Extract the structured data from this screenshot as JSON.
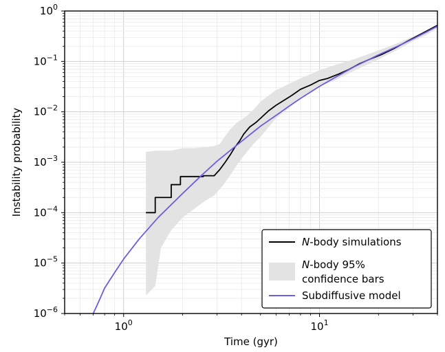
{
  "chart_data": {
    "type": "line",
    "xlabel": "Time (gyr)",
    "ylabel": "Instability probability",
    "x_scale": "log",
    "y_scale": "log",
    "xlim": [
      0.5,
      40
    ],
    "ylim": [
      1e-06,
      1
    ],
    "grid": true,
    "legend_position": "lower-right",
    "x_ticks": [
      {
        "value": 1,
        "base": "10",
        "exp": "0"
      },
      {
        "value": 10,
        "base": "10",
        "exp": "1"
      }
    ],
    "y_ticks": [
      {
        "value": 1,
        "base": "10",
        "exp": "0"
      },
      {
        "value": 0.1,
        "base": "10",
        "exp": "−1"
      },
      {
        "value": 0.01,
        "base": "10",
        "exp": "−2"
      },
      {
        "value": 0.001,
        "base": "10",
        "exp": "−3"
      },
      {
        "value": 0.0001,
        "base": "10",
        "exp": "−4"
      },
      {
        "value": 1e-05,
        "base": "10",
        "exp": "−5"
      },
      {
        "value": 1e-06,
        "base": "10",
        "exp": "−6"
      }
    ],
    "legend": [
      {
        "key": "nbody",
        "italic": "N",
        "text": "-body simulations",
        "style": "line",
        "color": "#000000"
      },
      {
        "key": "ci",
        "italic": "N",
        "text": "-body 95%",
        "text2": "confidence bars",
        "style": "band",
        "color": "#e3e3e3"
      },
      {
        "key": "model",
        "italic": "",
        "text": "Subdiffusive model",
        "style": "line",
        "color": "#6b5de0"
      }
    ],
    "series": [
      {
        "name": "N-body simulations",
        "kind": "step",
        "color": "#000000",
        "points": [
          [
            1.3,
            0.0001
          ],
          [
            1.45,
            0.0001
          ],
          [
            1.45,
            0.0002
          ],
          [
            1.75,
            0.0002
          ],
          [
            1.75,
            0.00036
          ],
          [
            1.95,
            0.00036
          ],
          [
            1.95,
            0.00052
          ],
          [
            2.55,
            0.00052
          ],
          [
            2.55,
            0.00054
          ],
          [
            2.9,
            0.00054
          ],
          [
            3.1,
            0.00072
          ],
          [
            3.3,
            0.001
          ],
          [
            3.5,
            0.0014
          ],
          [
            3.7,
            0.002
          ],
          [
            3.9,
            0.0026
          ],
          [
            4.1,
            0.0036
          ],
          [
            4.4,
            0.005
          ],
          [
            4.75,
            0.0062
          ],
          [
            5.1,
            0.008
          ],
          [
            5.5,
            0.0105
          ],
          [
            6.0,
            0.0135
          ],
          [
            6.6,
            0.017
          ],
          [
            7.2,
            0.021
          ],
          [
            8.0,
            0.028
          ],
          [
            9.0,
            0.034
          ],
          [
            10.0,
            0.042
          ],
          [
            11.0,
            0.046
          ],
          [
            12.5,
            0.056
          ],
          [
            14.0,
            0.068
          ],
          [
            16.0,
            0.09
          ],
          [
            18.0,
            0.11
          ],
          [
            21.0,
            0.14
          ],
          [
            24.0,
            0.18
          ],
          [
            28.0,
            0.25
          ],
          [
            33.0,
            0.35
          ],
          [
            40.0,
            0.52
          ]
        ]
      },
      {
        "name": "Subdiffusive model",
        "kind": "line",
        "color": "#6b5de0",
        "points": [
          [
            0.7,
            1e-06
          ],
          [
            0.75,
            1.8e-06
          ],
          [
            0.8,
            3.2e-06
          ],
          [
            0.9,
            6.5e-06
          ],
          [
            1.0,
            1.2e-05
          ],
          [
            1.2,
            3e-05
          ],
          [
            1.5,
            8e-05
          ],
          [
            2.0,
            0.00024
          ],
          [
            2.5,
            0.00055
          ],
          [
            3.0,
            0.00105
          ],
          [
            4.0,
            0.0026
          ],
          [
            5.0,
            0.0052
          ],
          [
            6.0,
            0.0085
          ],
          [
            7.0,
            0.013
          ],
          [
            8.0,
            0.0185
          ],
          [
            10.0,
            0.032
          ],
          [
            12.0,
            0.048
          ],
          [
            15.0,
            0.078
          ],
          [
            20.0,
            0.135
          ],
          [
            25.0,
            0.2
          ],
          [
            30.0,
            0.28
          ],
          [
            35.0,
            0.38
          ],
          [
            40.0,
            0.5
          ]
        ]
      },
      {
        "name": "N-body 95% confidence bars",
        "kind": "band",
        "color": "#e3e3e3",
        "lower": [
          [
            1.3,
            2.3e-06
          ],
          [
            1.45,
            3.5e-06
          ],
          [
            1.55,
            2e-05
          ],
          [
            1.75,
            4.5e-05
          ],
          [
            2.0,
            8e-05
          ],
          [
            2.3,
            0.00012
          ],
          [
            2.6,
            0.00017
          ],
          [
            2.9,
            0.00022
          ],
          [
            3.2,
            0.00034
          ],
          [
            3.5,
            0.00055
          ],
          [
            3.8,
            0.0009
          ],
          [
            4.2,
            0.0015
          ],
          [
            4.6,
            0.0023
          ],
          [
            5.0,
            0.0032
          ],
          [
            5.5,
            0.005
          ],
          [
            6.0,
            0.0075
          ],
          [
            7.0,
            0.012
          ],
          [
            8.0,
            0.018
          ],
          [
            9.0,
            0.025
          ],
          [
            10.0,
            0.032
          ],
          [
            12.0,
            0.042
          ],
          [
            15.0,
            0.065
          ],
          [
            20.0,
            0.11
          ],
          [
            25.0,
            0.17
          ],
          [
            30.0,
            0.25
          ],
          [
            35.0,
            0.33
          ],
          [
            40.0,
            0.45
          ]
        ],
        "upper": [
          [
            1.3,
            0.0016
          ],
          [
            1.45,
            0.0017
          ],
          [
            1.75,
            0.0017
          ],
          [
            2.0,
            0.0019
          ],
          [
            2.3,
            0.0019
          ],
          [
            2.6,
            0.002
          ],
          [
            2.9,
            0.0021
          ],
          [
            3.1,
            0.0023
          ],
          [
            3.3,
            0.0033
          ],
          [
            3.5,
            0.0045
          ],
          [
            3.8,
            0.0062
          ],
          [
            4.2,
            0.008
          ],
          [
            4.6,
            0.011
          ],
          [
            5.0,
            0.016
          ],
          [
            5.5,
            0.021
          ],
          [
            6.0,
            0.027
          ],
          [
            7.0,
            0.036
          ],
          [
            8.0,
            0.046
          ],
          [
            9.0,
            0.056
          ],
          [
            10.0,
            0.067
          ],
          [
            12.0,
            0.085
          ],
          [
            15.0,
            0.11
          ],
          [
            20.0,
            0.165
          ],
          [
            25.0,
            0.23
          ],
          [
            30.0,
            0.31
          ],
          [
            35.0,
            0.4
          ],
          [
            40.0,
            0.53
          ]
        ]
      }
    ]
  }
}
